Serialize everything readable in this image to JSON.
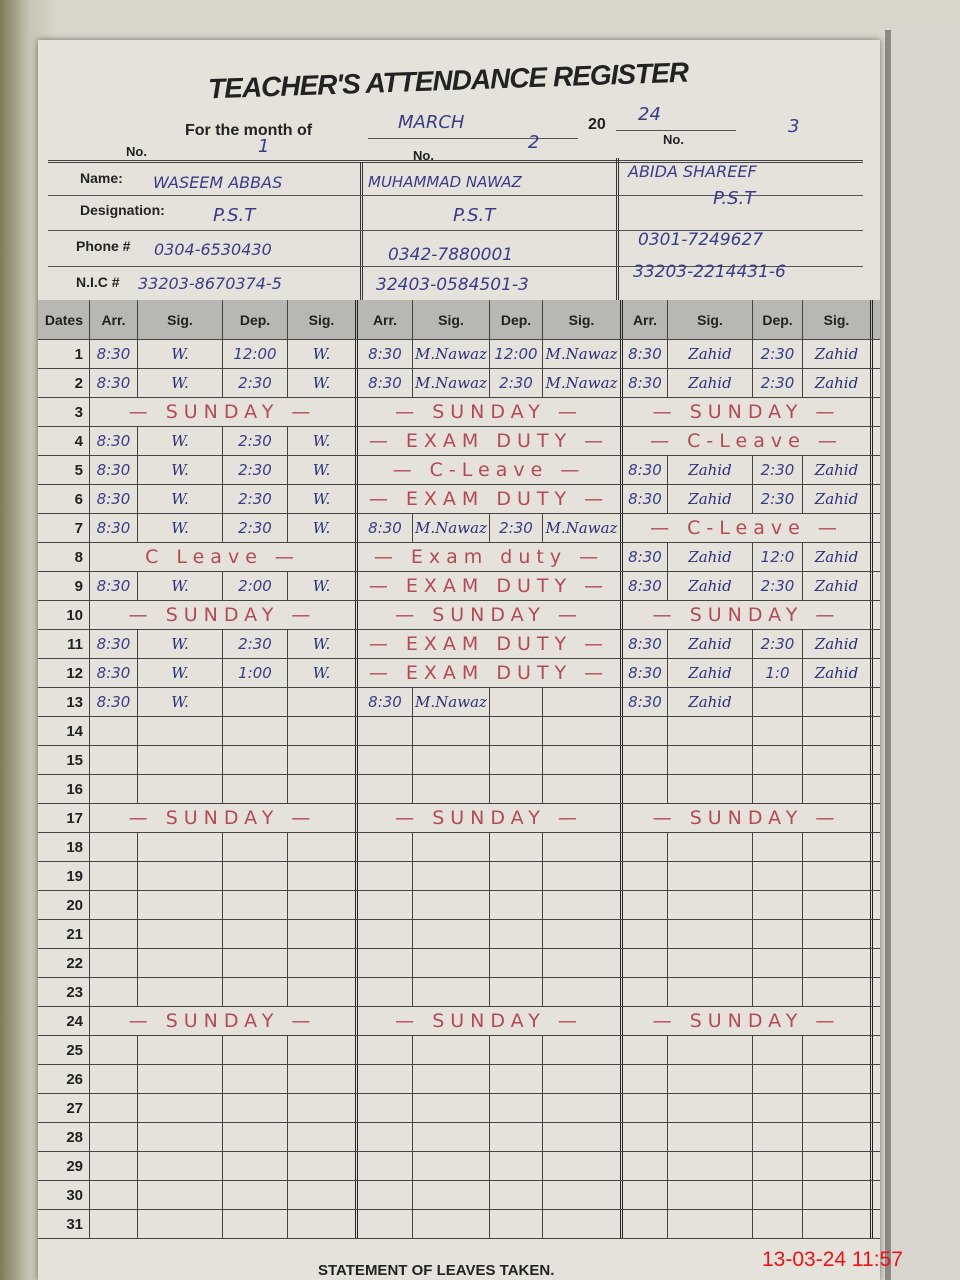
{
  "title": "TEACHER'S ATTENDANCE REGISTER",
  "month_label": "For the month of",
  "month": "MARCH",
  "year_prefix": "20",
  "year": "24",
  "labels": {
    "no": "No.",
    "name": "Name:",
    "designation": "Designation:",
    "phone": "Phone #",
    "nic": "N.I.C #"
  },
  "teachers": [
    {
      "no": "1",
      "name": "WASEEM ABBAS",
      "designation": "P.S.T",
      "phone": "0304-6530430",
      "nic": "33203-8670374-5"
    },
    {
      "no": "2",
      "name": "MUHAMMAD NAWAZ",
      "designation": "P.S.T",
      "phone": "0342-7880001",
      "nic": "32403-0584501-3"
    },
    {
      "no": "3",
      "name": "ABIDA SHAREEF",
      "designation": "P.S.T",
      "phone": "0301-7249627",
      "nic": "33203-2214431-6"
    }
  ],
  "columns": {
    "dates": "Dates",
    "arr": "Arr.",
    "sig": "Sig.",
    "dep": "Dep."
  },
  "rows": [
    {
      "d": "1",
      "t": [
        [
          "8:30",
          "W.",
          "12:00",
          "W."
        ],
        [
          "8:30",
          "M.Nawaz",
          "12:00",
          "M.Nawaz"
        ],
        [
          "8:30",
          "Zahid",
          "2:30",
          "Zahid"
        ]
      ]
    },
    {
      "d": "2",
      "t": [
        [
          "8:30",
          "W.",
          "2:30",
          "W."
        ],
        [
          "8:30",
          "M.Nawaz",
          "2:30",
          "M.Nawaz"
        ],
        [
          "8:30",
          "Zahid",
          "2:30",
          "Zahid"
        ]
      ]
    },
    {
      "d": "3",
      "t": [
        "— SUNDAY —",
        "— SUNDAY —",
        "— SUNDAY —"
      ]
    },
    {
      "d": "4",
      "t": [
        [
          "8:30",
          "W.",
          "2:30",
          "W."
        ],
        "— EXAM DUTY —",
        "— C-Leave —"
      ]
    },
    {
      "d": "5",
      "t": [
        [
          "8:30",
          "W.",
          "2:30",
          "W."
        ],
        "— C-Leave —",
        [
          "8:30",
          "Zahid",
          "2:30",
          "Zahid"
        ]
      ]
    },
    {
      "d": "6",
      "t": [
        [
          "8:30",
          "W.",
          "2:30",
          "W."
        ],
        "— EXAM DUTY —",
        [
          "8:30",
          "Zahid",
          "2:30",
          "Zahid"
        ]
      ]
    },
    {
      "d": "7",
      "t": [
        [
          "8:30",
          "W.",
          "2:30",
          "W."
        ],
        [
          "8:30",
          "M.Nawaz",
          "2:30",
          "M.Nawaz"
        ],
        "— C-Leave —"
      ]
    },
    {
      "d": "8",
      "t": [
        "C Leave —",
        "— Exam duty —",
        [
          "8:30",
          "Zahid",
          "12:0",
          "Zahid"
        ]
      ]
    },
    {
      "d": "9",
      "t": [
        [
          "8:30",
          "W.",
          "2:00",
          "W."
        ],
        "— EXAM DUTY —",
        [
          "8:30",
          "Zahid",
          "2:30",
          "Zahid"
        ]
      ]
    },
    {
      "d": "10",
      "t": [
        "— SUNDAY —",
        "— SUNDAY —",
        "— SUNDAY —"
      ]
    },
    {
      "d": "11",
      "t": [
        [
          "8:30",
          "W.",
          "2:30",
          "W."
        ],
        "— EXAM DUTY —",
        [
          "8:30",
          "Zahid",
          "2:30",
          "Zahid"
        ]
      ]
    },
    {
      "d": "12",
      "t": [
        [
          "8:30",
          "W.",
          "1:00",
          "W."
        ],
        "— EXAM DUTY —",
        [
          "8:30",
          "Zahid",
          "1:0",
          "Zahid"
        ]
      ]
    },
    {
      "d": "13",
      "t": [
        [
          "8:30",
          "W.",
          "",
          ""
        ],
        [
          "8:30",
          "M.Nawaz",
          "",
          ""
        ],
        [
          "8:30",
          "Zahid",
          "",
          ""
        ]
      ]
    },
    {
      "d": "14",
      "t": []
    },
    {
      "d": "15",
      "t": []
    },
    {
      "d": "16",
      "t": []
    },
    {
      "d": "17",
      "t": [
        "— SUNDAY —",
        "— SUNDAY —",
        "— SUNDAY —"
      ]
    },
    {
      "d": "18",
      "t": []
    },
    {
      "d": "19",
      "t": []
    },
    {
      "d": "20",
      "t": []
    },
    {
      "d": "21",
      "t": []
    },
    {
      "d": "22",
      "t": []
    },
    {
      "d": "23",
      "t": []
    },
    {
      "d": "24",
      "t": [
        "— SUNDAY —",
        "— SUNDAY —",
        "— SUNDAY —"
      ]
    },
    {
      "d": "25",
      "t": []
    },
    {
      "d": "26",
      "t": []
    },
    {
      "d": "27",
      "t": []
    },
    {
      "d": "28",
      "t": []
    },
    {
      "d": "29",
      "t": []
    },
    {
      "d": "30",
      "t": []
    },
    {
      "d": "31",
      "t": []
    }
  ],
  "footer": "STATEMENT OF LEAVES TAKEN.",
  "timestamp": "13-03-24  11:57",
  "colors": {
    "ink_blue": "#2d2f7a",
    "ink_red": "#b54a55",
    "stamp": "#ee1111"
  }
}
